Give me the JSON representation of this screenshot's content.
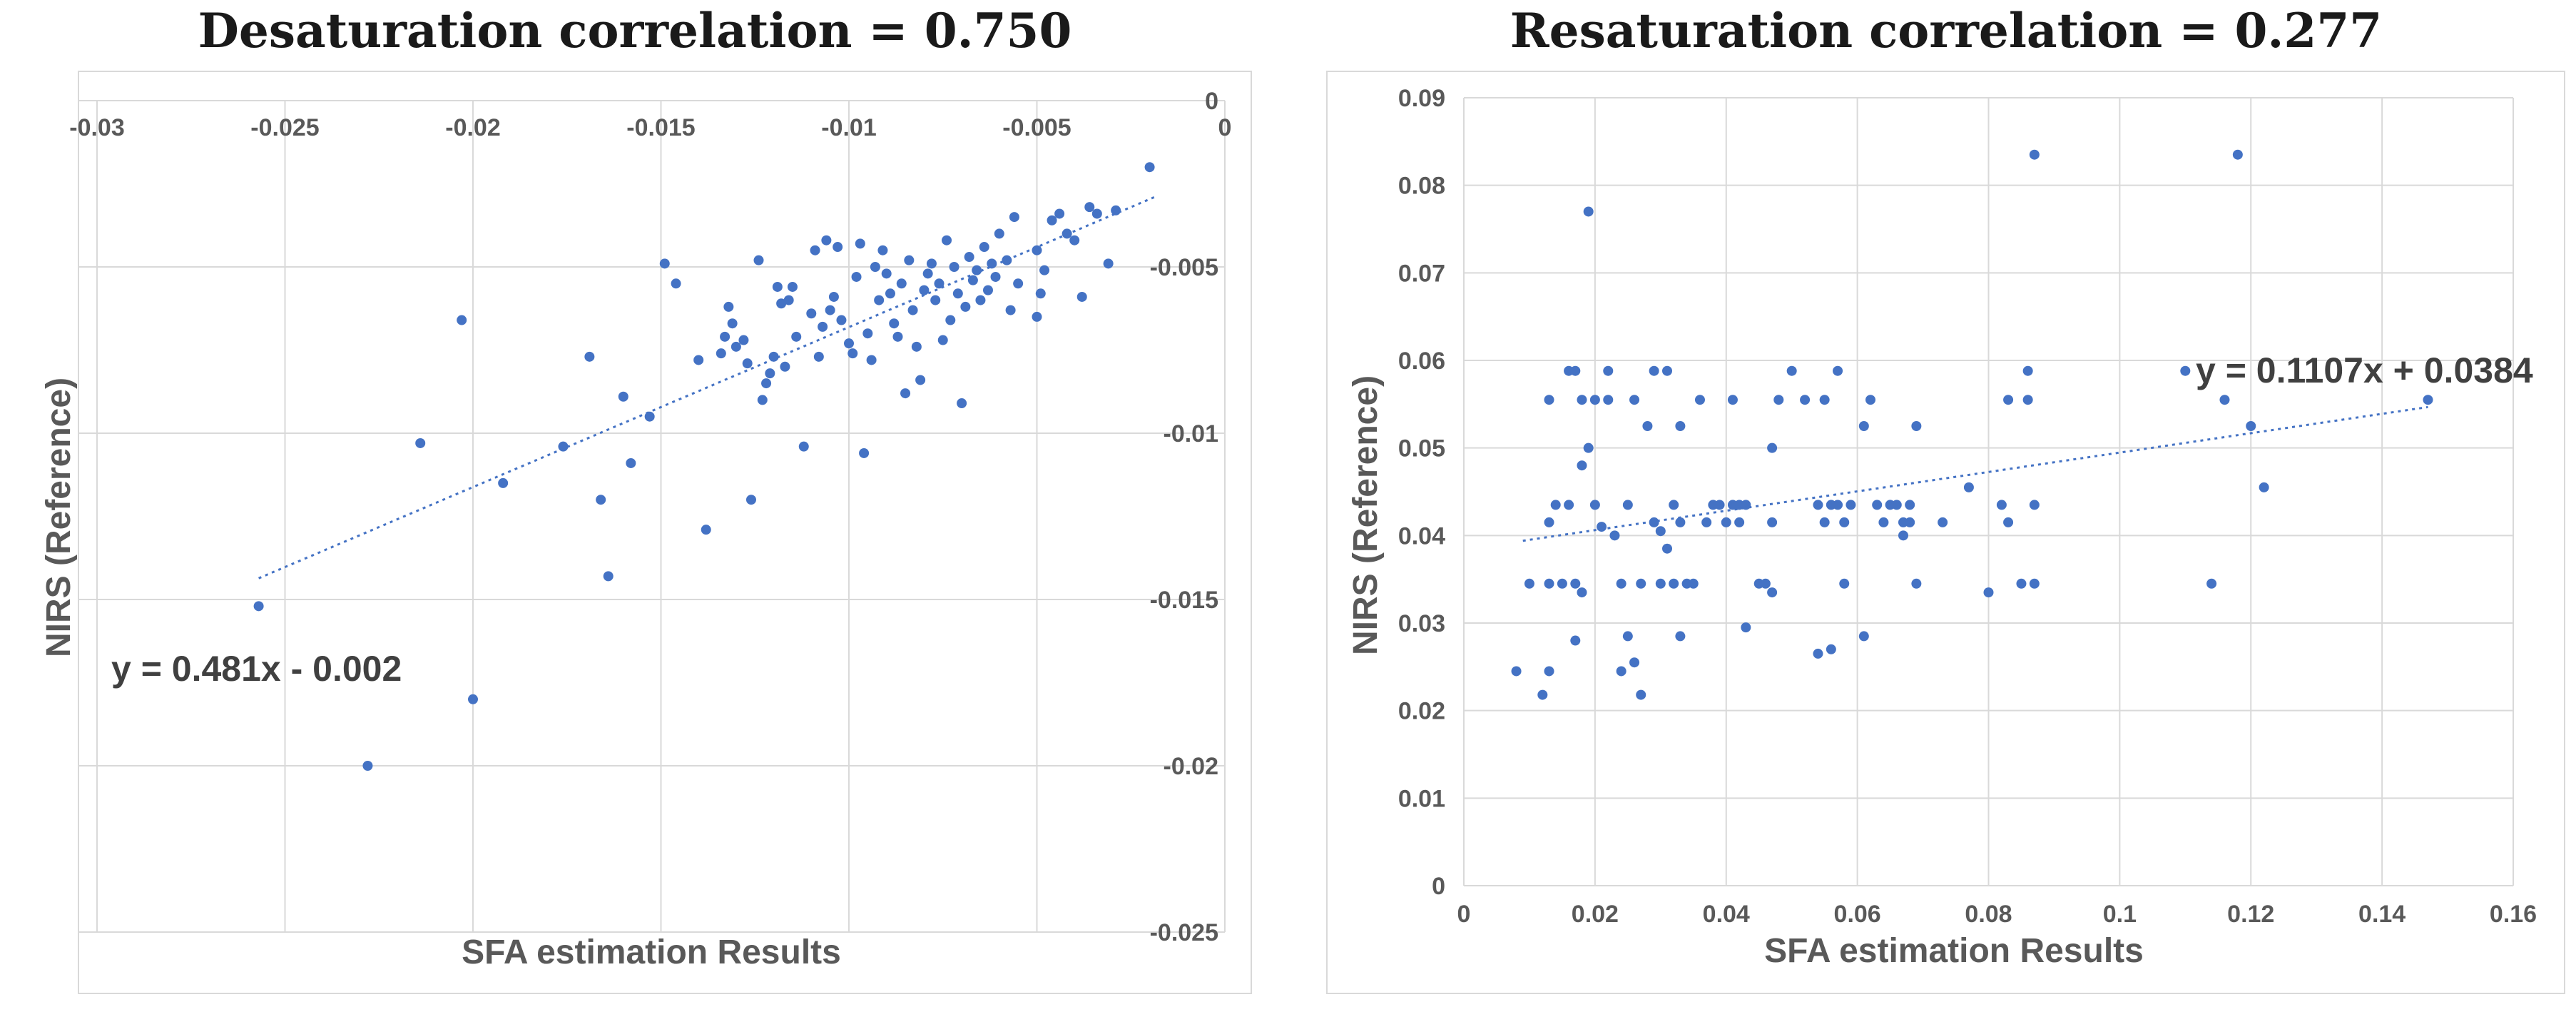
{
  "chart_data": [
    {
      "type": "scatter",
      "title": "Desaturation correlation = 0.750",
      "xlabel": "SFA estimation Results",
      "ylabel": "NIRS (Reference)",
      "xlim": [
        -0.03,
        0
      ],
      "ylim": [
        -0.025,
        0
      ],
      "x_ticks": [
        -0.03,
        -0.025,
        -0.02,
        -0.015,
        -0.01,
        -0.005,
        0
      ],
      "x_tick_labels": [
        "-0.03",
        "-0.025",
        "-0.02",
        "-0.015",
        "-0.01",
        "-0.005",
        "0"
      ],
      "y_ticks": [
        0,
        -0.005,
        -0.01,
        -0.015,
        -0.02,
        -0.025
      ],
      "y_tick_labels": [
        "0",
        "-0.005",
        "-0.01",
        "-0.015",
        "-0.02",
        "-0.025"
      ],
      "x_axis_position": "top",
      "y_axis_position": "right",
      "grid": true,
      "trendline": {
        "slope": 0.481,
        "intercept": -0.002,
        "x_range": [
          -0.0257,
          -0.0018
        ]
      },
      "equation": "y = 0.481x - 0.002",
      "points": [
        [
          -0.0257,
          -0.0152
        ],
        [
          -0.0228,
          -0.02
        ],
        [
          -0.02,
          -0.018
        ],
        [
          -0.0203,
          -0.0066
        ],
        [
          -0.0214,
          -0.0103
        ],
        [
          -0.0192,
          -0.0115
        ],
        [
          -0.0176,
          -0.0104
        ],
        [
          -0.0169,
          -0.0077
        ],
        [
          -0.0166,
          -0.012
        ],
        [
          -0.0164,
          -0.0143
        ],
        [
          -0.016,
          -0.0089
        ],
        [
          -0.0158,
          -0.0109
        ],
        [
          -0.0153,
          -0.0095
        ],
        [
          -0.0149,
          -0.0049
        ],
        [
          -0.0146,
          -0.0055
        ],
        [
          -0.014,
          -0.0078
        ],
        [
          -0.0138,
          -0.0129
        ],
        [
          -0.0134,
          -0.0076
        ],
        [
          -0.0133,
          -0.0071
        ],
        [
          -0.0132,
          -0.0062
        ],
        [
          -0.0131,
          -0.0067
        ],
        [
          -0.013,
          -0.0074
        ],
        [
          -0.0128,
          -0.0072
        ],
        [
          -0.0127,
          -0.0079
        ],
        [
          -0.0126,
          -0.012
        ],
        [
          -0.0124,
          -0.0048
        ],
        [
          -0.0123,
          -0.009
        ],
        [
          -0.0122,
          -0.0085
        ],
        [
          -0.0121,
          -0.0082
        ],
        [
          -0.012,
          -0.0077
        ],
        [
          -0.0119,
          -0.0056
        ],
        [
          -0.0118,
          -0.0061
        ],
        [
          -0.0117,
          -0.008
        ],
        [
          -0.0116,
          -0.006
        ],
        [
          -0.0115,
          -0.0056
        ],
        [
          -0.0114,
          -0.0071
        ],
        [
          -0.0112,
          -0.0104
        ],
        [
          -0.011,
          -0.0064
        ],
        [
          -0.0109,
          -0.0045
        ],
        [
          -0.0108,
          -0.0077
        ],
        [
          -0.0107,
          -0.0068
        ],
        [
          -0.0106,
          -0.0042
        ],
        [
          -0.0105,
          -0.0063
        ],
        [
          -0.0104,
          -0.0059
        ],
        [
          -0.0103,
          -0.0044
        ],
        [
          -0.0102,
          -0.0066
        ],
        [
          -0.01,
          -0.0073
        ],
        [
          -0.0099,
          -0.0076
        ],
        [
          -0.0098,
          -0.0053
        ],
        [
          -0.0097,
          -0.0043
        ],
        [
          -0.0096,
          -0.0106
        ],
        [
          -0.0095,
          -0.007
        ],
        [
          -0.0094,
          -0.0078
        ],
        [
          -0.0093,
          -0.005
        ],
        [
          -0.0092,
          -0.006
        ],
        [
          -0.0091,
          -0.0045
        ],
        [
          -0.009,
          -0.0052
        ],
        [
          -0.0089,
          -0.0058
        ],
        [
          -0.0088,
          -0.0067
        ],
        [
          -0.0087,
          -0.0071
        ],
        [
          -0.0086,
          -0.0055
        ],
        [
          -0.0085,
          -0.0088
        ],
        [
          -0.0084,
          -0.0048
        ],
        [
          -0.0083,
          -0.0063
        ],
        [
          -0.0082,
          -0.0074
        ],
        [
          -0.0081,
          -0.0084
        ],
        [
          -0.008,
          -0.0057
        ],
        [
          -0.0079,
          -0.0052
        ],
        [
          -0.0078,
          -0.0049
        ],
        [
          -0.0077,
          -0.006
        ],
        [
          -0.0076,
          -0.0055
        ],
        [
          -0.0075,
          -0.0072
        ],
        [
          -0.0074,
          -0.0042
        ],
        [
          -0.0073,
          -0.0066
        ],
        [
          -0.0072,
          -0.005
        ],
        [
          -0.0071,
          -0.0058
        ],
        [
          -0.007,
          -0.0091
        ],
        [
          -0.0069,
          -0.0062
        ],
        [
          -0.0068,
          -0.0047
        ],
        [
          -0.0067,
          -0.0054
        ],
        [
          -0.0066,
          -0.0051
        ],
        [
          -0.0065,
          -0.006
        ],
        [
          -0.0064,
          -0.0044
        ],
        [
          -0.0063,
          -0.0057
        ],
        [
          -0.0062,
          -0.0049
        ],
        [
          -0.0061,
          -0.0053
        ],
        [
          -0.006,
          -0.004
        ],
        [
          -0.0058,
          -0.0048
        ],
        [
          -0.0057,
          -0.0063
        ],
        [
          -0.0056,
          -0.0035
        ],
        [
          -0.0055,
          -0.0055
        ],
        [
          -0.005,
          -0.0065
        ],
        [
          -0.005,
          -0.0045
        ],
        [
          -0.0049,
          -0.0058
        ],
        [
          -0.0048,
          -0.0051
        ],
        [
          -0.0046,
          -0.0036
        ],
        [
          -0.0044,
          -0.0034
        ],
        [
          -0.0042,
          -0.004
        ],
        [
          -0.004,
          -0.0042
        ],
        [
          -0.0038,
          -0.0059
        ],
        [
          -0.0036,
          -0.0032
        ],
        [
          -0.0034,
          -0.0034
        ],
        [
          -0.0031,
          -0.0049
        ],
        [
          -0.0029,
          -0.0033
        ],
        [
          -0.002,
          -0.002
        ]
      ]
    },
    {
      "type": "scatter",
      "title": "Resaturation correlation = 0.277",
      "xlabel": "SFA estimation Results",
      "ylabel": "NIRS (Reference)",
      "xlim": [
        0,
        0.16
      ],
      "ylim": [
        0,
        0.09
      ],
      "x_ticks": [
        0,
        0.02,
        0.04,
        0.06,
        0.08,
        0.1,
        0.12,
        0.14,
        0.16
      ],
      "x_tick_labels": [
        "0",
        "0.02",
        "0.04",
        "0.06",
        "0.08",
        "0.1",
        "0.12",
        "0.14",
        "0.16"
      ],
      "y_ticks": [
        0,
        0.01,
        0.02,
        0.03,
        0.04,
        0.05,
        0.06,
        0.07,
        0.08,
        0.09
      ],
      "y_tick_labels": [
        "0",
        "0.01",
        "0.02",
        "0.03",
        "0.04",
        "0.05",
        "0.06",
        "0.07",
        "0.08",
        "0.09"
      ],
      "x_axis_position": "bottom",
      "y_axis_position": "left",
      "grid": true,
      "trendline": {
        "slope": 0.1107,
        "intercept": 0.0384,
        "x_range": [
          0.009,
          0.147
        ]
      },
      "equation": "y = 0.1107x + 0.0384",
      "points": [
        [
          0.008,
          0.0245
        ],
        [
          0.01,
          0.0345
        ],
        [
          0.012,
          0.0218
        ],
        [
          0.013,
          0.0245
        ],
        [
          0.013,
          0.0345
        ],
        [
          0.013,
          0.0415
        ],
        [
          0.013,
          0.0555
        ],
        [
          0.014,
          0.0435
        ],
        [
          0.015,
          0.0345
        ],
        [
          0.016,
          0.0435
        ],
        [
          0.016,
          0.0588
        ],
        [
          0.017,
          0.0345
        ],
        [
          0.017,
          0.0588
        ],
        [
          0.017,
          0.028
        ],
        [
          0.018,
          0.0335
        ],
        [
          0.018,
          0.0555
        ],
        [
          0.018,
          0.048
        ],
        [
          0.019,
          0.05
        ],
        [
          0.019,
          0.077
        ],
        [
          0.02,
          0.0555
        ],
        [
          0.02,
          0.0435
        ],
        [
          0.021,
          0.041
        ],
        [
          0.022,
          0.0588
        ],
        [
          0.022,
          0.0555
        ],
        [
          0.023,
          0.04
        ],
        [
          0.024,
          0.0345
        ],
        [
          0.024,
          0.0245
        ],
        [
          0.025,
          0.0285
        ],
        [
          0.025,
          0.0435
        ],
        [
          0.026,
          0.0555
        ],
        [
          0.026,
          0.0255
        ],
        [
          0.027,
          0.0345
        ],
        [
          0.027,
          0.0218
        ],
        [
          0.028,
          0.0525
        ],
        [
          0.029,
          0.0415
        ],
        [
          0.029,
          0.0588
        ],
        [
          0.03,
          0.0345
        ],
        [
          0.03,
          0.0405
        ],
        [
          0.031,
          0.0588
        ],
        [
          0.031,
          0.0385
        ],
        [
          0.032,
          0.0345
        ],
        [
          0.032,
          0.0435
        ],
        [
          0.033,
          0.0285
        ],
        [
          0.033,
          0.0415
        ],
        [
          0.033,
          0.0525
        ],
        [
          0.034,
          0.0345
        ],
        [
          0.035,
          0.0345
        ],
        [
          0.036,
          0.0555
        ],
        [
          0.037,
          0.0415
        ],
        [
          0.038,
          0.0435
        ],
        [
          0.039,
          0.0435
        ],
        [
          0.04,
          0.0415
        ],
        [
          0.041,
          0.0435
        ],
        [
          0.041,
          0.0555
        ],
        [
          0.042,
          0.0435
        ],
        [
          0.042,
          0.0415
        ],
        [
          0.043,
          0.0295
        ],
        [
          0.043,
          0.0435
        ],
        [
          0.045,
          0.0345
        ],
        [
          0.046,
          0.0345
        ],
        [
          0.047,
          0.0335
        ],
        [
          0.047,
          0.05
        ],
        [
          0.047,
          0.0415
        ],
        [
          0.048,
          0.0555
        ],
        [
          0.05,
          0.0588
        ],
        [
          0.052,
          0.0555
        ],
        [
          0.054,
          0.0435
        ],
        [
          0.054,
          0.0265
        ],
        [
          0.055,
          0.0555
        ],
        [
          0.055,
          0.0415
        ],
        [
          0.056,
          0.0435
        ],
        [
          0.056,
          0.027
        ],
        [
          0.057,
          0.0588
        ],
        [
          0.057,
          0.0435
        ],
        [
          0.058,
          0.0345
        ],
        [
          0.058,
          0.0415
        ],
        [
          0.059,
          0.0435
        ],
        [
          0.061,
          0.0525
        ],
        [
          0.061,
          0.0285
        ],
        [
          0.062,
          0.0555
        ],
        [
          0.063,
          0.0435
        ],
        [
          0.064,
          0.0415
        ],
        [
          0.065,
          0.0435
        ],
        [
          0.066,
          0.0435
        ],
        [
          0.067,
          0.0415
        ],
        [
          0.067,
          0.04
        ],
        [
          0.068,
          0.0415
        ],
        [
          0.068,
          0.0435
        ],
        [
          0.069,
          0.0345
        ],
        [
          0.069,
          0.0525
        ],
        [
          0.073,
          0.0415
        ],
        [
          0.077,
          0.0455
        ],
        [
          0.08,
          0.0335
        ],
        [
          0.082,
          0.0435
        ],
        [
          0.083,
          0.0555
        ],
        [
          0.083,
          0.0415
        ],
        [
          0.085,
          0.0345
        ],
        [
          0.086,
          0.0588
        ],
        [
          0.086,
          0.0555
        ],
        [
          0.087,
          0.0835
        ],
        [
          0.087,
          0.0435
        ],
        [
          0.087,
          0.0345
        ],
        [
          0.11,
          0.0588
        ],
        [
          0.114,
          0.0345
        ],
        [
          0.116,
          0.0555
        ],
        [
          0.118,
          0.0835
        ],
        [
          0.12,
          0.0525
        ],
        [
          0.122,
          0.0455
        ],
        [
          0.147,
          0.0555
        ]
      ]
    }
  ]
}
